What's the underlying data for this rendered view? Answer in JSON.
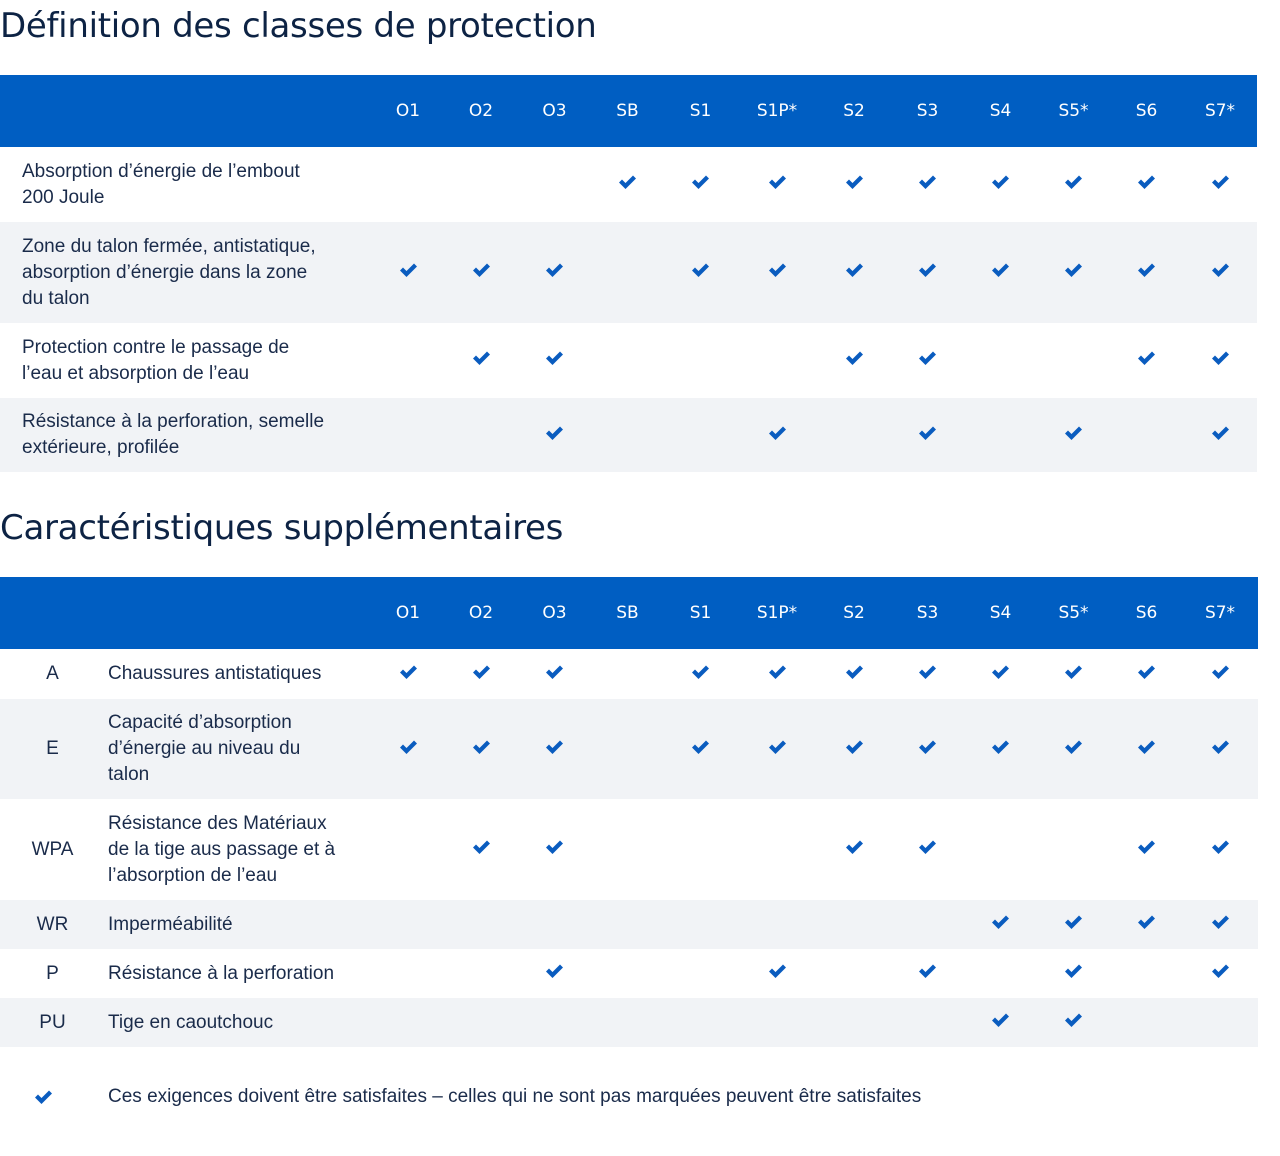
{
  "colors": {
    "header": "#005ec2",
    "check": "#0a5cbf",
    "stripe": "#f1f3f6"
  },
  "section1": {
    "title": "Définition des classes de protection",
    "columns": [
      "O1",
      "O2",
      "O3",
      "SB",
      "S1",
      "S1P*",
      "S2",
      "S3",
      "S4",
      "S5*",
      "S6",
      "S7*"
    ],
    "rows": [
      {
        "lines": [
          "Absorption d’énergie de l’embout",
          "200 Joule"
        ],
        "checks": [
          false,
          false,
          false,
          true,
          true,
          true,
          true,
          true,
          true,
          true,
          true,
          true
        ]
      },
      {
        "lines": [
          "Zone du talon fermée, antistatique,",
          "absorption d’énergie dans la zone",
          "du talon"
        ],
        "checks": [
          true,
          true,
          true,
          false,
          true,
          true,
          true,
          true,
          true,
          true,
          true,
          true
        ]
      },
      {
        "lines": [
          "Protection contre le passage de",
          "l’eau et absorption de l’eau"
        ],
        "checks": [
          false,
          true,
          true,
          false,
          false,
          false,
          true,
          true,
          false,
          false,
          true,
          true
        ]
      },
      {
        "lines": [
          "Résistance à la perforation, semelle",
          "extérieure, profilée"
        ],
        "checks": [
          false,
          false,
          true,
          false,
          false,
          true,
          false,
          true,
          false,
          true,
          false,
          true
        ]
      }
    ]
  },
  "section2": {
    "title": "Caractéristiques supplémentaires",
    "columns": [
      "O1",
      "O2",
      "O3",
      "SB",
      "S1",
      "S1P*",
      "S2",
      "S3",
      "S4",
      "S5*",
      "S6",
      "S7*"
    ],
    "rows": [
      {
        "code": "A",
        "lines": [
          "Chaussures antistatiques"
        ],
        "checks": [
          true,
          true,
          true,
          false,
          true,
          true,
          true,
          true,
          true,
          true,
          true,
          true
        ]
      },
      {
        "code": "E",
        "lines": [
          "Capacité d’absorption",
          "d’énergie au niveau du",
          "talon"
        ],
        "checks": [
          true,
          true,
          true,
          false,
          true,
          true,
          true,
          true,
          true,
          true,
          true,
          true
        ]
      },
      {
        "code": "WPA",
        "lines": [
          "Résistance des Matériaux",
          "de la tige aus passage et à",
          "l’absorption de l’eau"
        ],
        "checks": [
          false,
          true,
          true,
          false,
          false,
          false,
          true,
          true,
          false,
          false,
          true,
          true
        ]
      },
      {
        "code": "WR",
        "lines": [
          "Imperméabilité"
        ],
        "checks": [
          false,
          false,
          false,
          false,
          false,
          false,
          false,
          false,
          true,
          true,
          true,
          true
        ]
      },
      {
        "code": "P",
        "lines": [
          "Résistance à la perforation"
        ],
        "checks": [
          false,
          false,
          true,
          false,
          false,
          true,
          false,
          true,
          false,
          true,
          false,
          true
        ]
      },
      {
        "code": "PU",
        "lines": [
          "Tige en caoutchouc"
        ],
        "checks": [
          false,
          false,
          false,
          false,
          false,
          false,
          false,
          false,
          true,
          true,
          false,
          false
        ]
      }
    ]
  },
  "legend": {
    "icon": "check-icon",
    "text": "Ces exigences doivent être satisfaites – celles qui ne sont pas marquées peuvent être satisfaites"
  }
}
